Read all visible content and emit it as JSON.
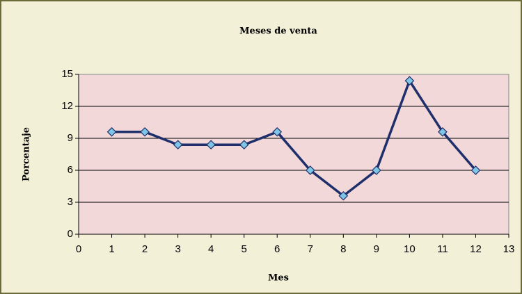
{
  "chart_data": {
    "type": "line",
    "title": "Meses de venta",
    "x_label": "Mes",
    "y_label": "Porcentaje",
    "x": [
      1,
      2,
      3,
      4,
      5,
      6,
      7,
      8,
      9,
      10,
      11,
      12
    ],
    "series": [
      {
        "name": "Porcentaje",
        "color": "#1f2f6b",
        "marker_color": "#7fc6e6",
        "values": [
          9.6,
          9.6,
          8.4,
          8.4,
          8.4,
          9.6,
          6.0,
          3.6,
          6.0,
          14.4,
          9.6,
          6.0
        ]
      }
    ],
    "xlim": [
      0,
      13
    ],
    "xticks": [
      0,
      1,
      2,
      3,
      4,
      5,
      6,
      7,
      8,
      9,
      10,
      11,
      12,
      13
    ],
    "ylim": [
      0,
      15
    ],
    "yticks": [
      0,
      3,
      6,
      9,
      12,
      15
    ],
    "grid": true
  }
}
